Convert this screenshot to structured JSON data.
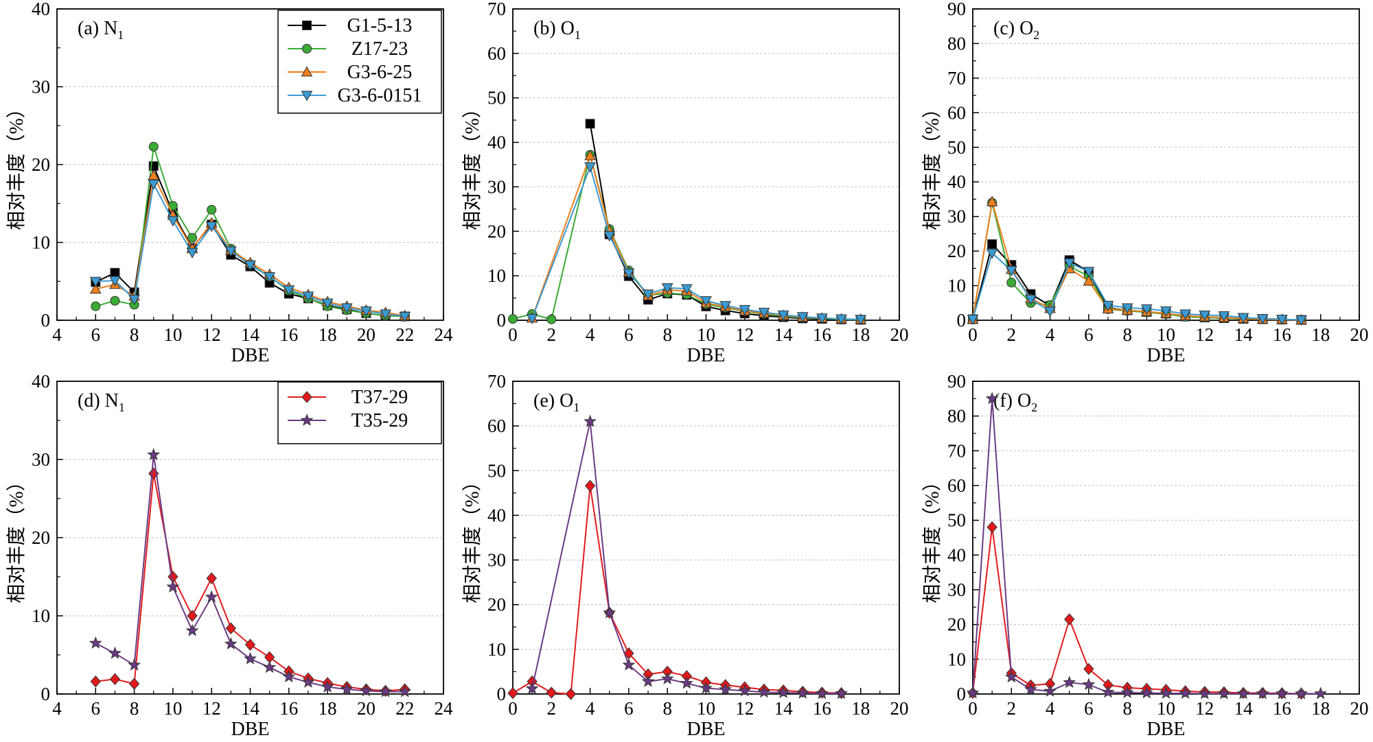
{
  "figure": {
    "y_axis_label": "相对丰度（%）",
    "x_axis_label": "DBE"
  },
  "chart_data": [
    {
      "panel": "a",
      "type": "line",
      "label": "(a) N",
      "label_sub": "1",
      "xlim": [
        4,
        24
      ],
      "xticks": [
        4,
        6,
        8,
        10,
        12,
        14,
        16,
        18,
        20,
        22,
        24
      ],
      "ylim": [
        0,
        40
      ],
      "yticks": [
        0,
        10,
        20,
        30,
        40
      ],
      "xlabel": "DBE",
      "ylabel": "相对丰度（%）",
      "legend": "top-right",
      "grid": "y-dashed",
      "series": [
        {
          "name": "G1-5-13",
          "color": "#000000",
          "marker": "square",
          "x": [
            6,
            7,
            8,
            9,
            10,
            11,
            12,
            13,
            14,
            15,
            16,
            17,
            18,
            19,
            20,
            21,
            22
          ],
          "y": [
            4.9,
            6.1,
            3.6,
            19.8,
            13.8,
            9.3,
            12.3,
            8.4,
            6.9,
            4.8,
            3.4,
            2.8,
            1.9,
            1.4,
            0.9,
            0.6,
            0.5
          ]
        },
        {
          "name": "Z17-23",
          "color": "#3aa935",
          "marker": "circle",
          "x": [
            6,
            7,
            8,
            9,
            10,
            11,
            12,
            13,
            14,
            15,
            16,
            17,
            18,
            19,
            20,
            21,
            22
          ],
          "y": [
            1.8,
            2.5,
            2.0,
            22.3,
            14.7,
            10.6,
            14.2,
            9.2,
            7.2,
            5.6,
            3.8,
            2.8,
            1.8,
            1.3,
            0.9,
            0.6,
            0.5
          ]
        },
        {
          "name": "G3-6-25",
          "color": "#f07f1d",
          "marker": "triangle-up",
          "x": [
            6,
            7,
            8,
            9,
            10,
            11,
            12,
            13,
            14,
            15,
            16,
            17,
            18,
            19,
            20,
            21,
            22
          ],
          "y": [
            4.0,
            4.6,
            3.1,
            18.6,
            13.5,
            9.2,
            12.5,
            9.0,
            7.4,
            5.9,
            4.2,
            3.3,
            2.4,
            1.8,
            1.3,
            1.0,
            0.6
          ]
        },
        {
          "name": "G3-6-0151",
          "color": "#3b9ad1",
          "marker": "triangle-down",
          "x": [
            6,
            7,
            8,
            9,
            10,
            11,
            12,
            13,
            14,
            15,
            16,
            17,
            18,
            19,
            20,
            21,
            22
          ],
          "y": [
            5.0,
            5.1,
            2.7,
            17.5,
            12.8,
            8.7,
            12.1,
            8.9,
            7.1,
            5.6,
            3.9,
            3.1,
            2.2,
            1.6,
            1.2,
            0.8,
            0.5
          ]
        }
      ]
    },
    {
      "panel": "b",
      "type": "line",
      "label": "(b) O",
      "label_sub": "1",
      "xlim": [
        0,
        20
      ],
      "xticks": [
        0,
        2,
        4,
        6,
        8,
        10,
        12,
        14,
        16,
        18,
        20
      ],
      "ylim": [
        0,
        70
      ],
      "yticks": [
        0,
        10,
        20,
        30,
        40,
        50,
        60,
        70
      ],
      "xlabel": "DBE",
      "ylabel": "相对丰度（%）",
      "grid": "y-dashed",
      "series": [
        {
          "name": "G1-5-13",
          "color": "#000000",
          "marker": "square",
          "x": [
            4,
            5,
            6,
            7,
            8,
            9,
            10,
            11,
            12,
            13,
            14,
            15,
            16,
            17,
            18
          ],
          "y": [
            44.2,
            19.3,
            9.9,
            4.6,
            6.0,
            5.7,
            3.1,
            2.2,
            1.5,
            1.0,
            0.7,
            0.4,
            0.3,
            0.2,
            0.1
          ]
        },
        {
          "name": "Z17-23",
          "color": "#3aa935",
          "marker": "circle",
          "x": [
            0,
            1,
            2,
            4,
            5,
            6,
            7,
            8,
            9,
            10,
            11,
            12,
            13,
            14,
            15,
            16,
            17,
            18
          ],
          "y": [
            0.3,
            1.4,
            0.2,
            37.2,
            20.5,
            11.2,
            5.6,
            6.1,
            5.8,
            3.6,
            2.8,
            2.0,
            1.4,
            0.9,
            0.6,
            0.4,
            0.2,
            0.1
          ]
        },
        {
          "name": "G3-6-25",
          "color": "#f07f1d",
          "marker": "triangle-up",
          "x": [
            1,
            4,
            5,
            6,
            7,
            8,
            9,
            10,
            11,
            12,
            13,
            14,
            15,
            16,
            17,
            18
          ],
          "y": [
            0.5,
            37.0,
            20.2,
            10.8,
            5.5,
            6.8,
            6.6,
            3.9,
            3.0,
            2.1,
            1.6,
            1.1,
            0.7,
            0.5,
            0.3,
            0.2
          ]
        },
        {
          "name": "G3-6-0151",
          "color": "#3b9ad1",
          "marker": "triangle-down",
          "x": [
            1,
            4,
            5,
            6,
            7,
            8,
            9,
            10,
            11,
            12,
            13,
            14,
            15,
            16,
            17,
            18
          ],
          "y": [
            0.4,
            34.5,
            19.0,
            10.6,
            5.9,
            7.3,
            7.1,
            4.4,
            3.3,
            2.4,
            1.8,
            1.2,
            0.8,
            0.5,
            0.3,
            0.2
          ]
        }
      ]
    },
    {
      "panel": "c",
      "type": "line",
      "label": "(c) O",
      "label_sub": "2",
      "xlim": [
        0,
        20
      ],
      "xticks": [
        0,
        2,
        4,
        6,
        8,
        10,
        12,
        14,
        16,
        18,
        20
      ],
      "ylim": [
        0,
        90
      ],
      "yticks": [
        0,
        10,
        20,
        30,
        40,
        50,
        60,
        70,
        80,
        90
      ],
      "xlabel": "DBE",
      "ylabel": "相对丰度（%）",
      "grid": "y-dashed",
      "series": [
        {
          "name": "G1-5-13",
          "color": "#000000",
          "marker": "square",
          "x": [
            0,
            1,
            2,
            3,
            4,
            5,
            6,
            7,
            8,
            9,
            10,
            11,
            12,
            13,
            14,
            15,
            16,
            17
          ],
          "y": [
            0.3,
            22.0,
            16.0,
            7.6,
            4.2,
            17.4,
            14.0,
            3.5,
            2.9,
            2.4,
            1.9,
            1.1,
            0.8,
            0.6,
            0.4,
            0.3,
            0.2,
            0.1
          ]
        },
        {
          "name": "Z17-23",
          "color": "#3aa935",
          "marker": "circle",
          "x": [
            0,
            1,
            2,
            3,
            4,
            5,
            6,
            7,
            8,
            9,
            10,
            11,
            12,
            13,
            14,
            15,
            16,
            17
          ],
          "y": [
            0.3,
            34.0,
            10.9,
            5.0,
            4.4,
            15.6,
            12.7,
            3.2,
            2.7,
            2.3,
            1.8,
            1.0,
            0.8,
            0.6,
            0.4,
            0.3,
            0.2,
            0.1
          ]
        },
        {
          "name": "G3-6-25",
          "color": "#f07f1d",
          "marker": "triangle-up",
          "x": [
            0,
            1,
            2,
            3,
            4,
            5,
            6,
            7,
            8,
            9,
            10,
            11,
            12,
            13,
            14,
            15,
            16,
            17
          ],
          "y": [
            0.3,
            34.3,
            14.7,
            6.3,
            3.4,
            14.9,
            11.3,
            3.3,
            2.9,
            2.5,
            2.0,
            1.3,
            1.0,
            0.8,
            0.5,
            0.3,
            0.2,
            0.1
          ]
        },
        {
          "name": "G3-6-0151",
          "color": "#3b9ad1",
          "marker": "triangle-down",
          "x": [
            0,
            1,
            2,
            3,
            4,
            5,
            6,
            7,
            8,
            9,
            10,
            11,
            12,
            13,
            14,
            15,
            16,
            17
          ],
          "y": [
            0.3,
            19.4,
            14.4,
            6.1,
            2.6,
            16.6,
            14.1,
            4.3,
            3.6,
            3.3,
            2.7,
            1.8,
            1.5,
            1.3,
            0.8,
            0.5,
            0.3,
            0.1
          ]
        }
      ]
    },
    {
      "panel": "d",
      "type": "line",
      "label": "(d) N",
      "label_sub": "1",
      "xlim": [
        4,
        24
      ],
      "xticks": [
        4,
        6,
        8,
        10,
        12,
        14,
        16,
        18,
        20,
        22,
        24
      ],
      "ylim": [
        0,
        40
      ],
      "yticks": [
        0,
        10,
        20,
        30,
        40
      ],
      "xlabel": "DBE",
      "ylabel": "相对丰度（%）",
      "legend": "top-right",
      "grid": "y-dashed",
      "series": [
        {
          "name": "T37-29",
          "color": "#e3191c",
          "marker": "diamond",
          "x": [
            6,
            7,
            8,
            9,
            10,
            11,
            12,
            13,
            14,
            15,
            16,
            17,
            18,
            19,
            20,
            21,
            22
          ],
          "y": [
            1.6,
            1.9,
            1.3,
            28.2,
            15.0,
            10.0,
            14.8,
            8.4,
            6.3,
            4.7,
            2.9,
            2.0,
            1.4,
            0.9,
            0.6,
            0.4,
            0.6
          ]
        },
        {
          "name": "T35-29",
          "color": "#6a3a84",
          "marker": "star",
          "x": [
            6,
            7,
            8,
            9,
            10,
            11,
            12,
            13,
            14,
            15,
            16,
            17,
            18,
            19,
            20,
            21,
            22
          ],
          "y": [
            6.5,
            5.2,
            3.7,
            30.6,
            13.7,
            8.1,
            12.4,
            6.4,
            4.5,
            3.4,
            2.2,
            1.5,
            0.9,
            0.6,
            0.4,
            0.3,
            0.3
          ]
        }
      ]
    },
    {
      "panel": "e",
      "type": "line",
      "label": "(e) O",
      "label_sub": "1",
      "xlim": [
        0,
        20
      ],
      "xticks": [
        0,
        2,
        4,
        6,
        8,
        10,
        12,
        14,
        16,
        18,
        20
      ],
      "ylim": [
        0,
        70
      ],
      "yticks": [
        0,
        10,
        20,
        30,
        40,
        50,
        60,
        70
      ],
      "xlabel": "DBE",
      "ylabel": "相对丰度（%）",
      "grid": "y-dashed",
      "series": [
        {
          "name": "T37-29",
          "color": "#e3191c",
          "marker": "diamond",
          "x": [
            0,
            1,
            2,
            3,
            4,
            5,
            6,
            7,
            8,
            9,
            10,
            11,
            12,
            13,
            14,
            15,
            16,
            17
          ],
          "y": [
            0.2,
            2.8,
            0.3,
            0.0,
            46.6,
            18.2,
            9.1,
            4.4,
            5.0,
            4.0,
            2.6,
            2.0,
            1.5,
            1.0,
            0.8,
            0.5,
            0.3,
            0.2
          ]
        },
        {
          "name": "T35-29",
          "color": "#6a3a84",
          "marker": "star",
          "x": [
            1,
            4,
            5,
            6,
            7,
            8,
            9,
            10,
            11,
            12,
            13,
            14,
            15,
            16,
            17
          ],
          "y": [
            1.2,
            61.0,
            18.2,
            6.5,
            2.8,
            3.4,
            2.4,
            1.3,
            1.0,
            0.7,
            0.4,
            0.3,
            0.2,
            0.1,
            0.1
          ]
        }
      ]
    },
    {
      "panel": "f",
      "type": "line",
      "label": "(f) O",
      "label_sub": "2",
      "xlim": [
        0,
        20
      ],
      "xticks": [
        0,
        2,
        4,
        6,
        8,
        10,
        12,
        14,
        16,
        18,
        20
      ],
      "ylim": [
        0,
        90
      ],
      "yticks": [
        0,
        10,
        20,
        30,
        40,
        50,
        60,
        70,
        80,
        90
      ],
      "xlabel": "DBE",
      "ylabel": "相对丰度（%）",
      "grid": "y-dashed",
      "series": [
        {
          "name": "T37-29",
          "color": "#e3191c",
          "marker": "diamond",
          "x": [
            0,
            1,
            2,
            3,
            4,
            5,
            6,
            7,
            8,
            9,
            10,
            11,
            12,
            13,
            14,
            15,
            16,
            17
          ],
          "y": [
            0.3,
            48.0,
            6.0,
            2.5,
            2.9,
            21.5,
            7.2,
            2.6,
            1.8,
            1.5,
            1.2,
            0.8,
            0.6,
            0.5,
            0.3,
            0.3,
            0.2,
            0.1
          ]
        },
        {
          "name": "T35-29",
          "color": "#6a3a84",
          "marker": "star",
          "x": [
            0,
            1,
            2,
            3,
            4,
            5,
            6,
            7,
            8,
            9,
            10,
            11,
            12,
            13,
            14,
            15,
            16,
            17,
            18
          ],
          "y": [
            0.3,
            85.0,
            4.9,
            1.3,
            0.8,
            3.3,
            2.7,
            0.5,
            0.4,
            0.3,
            0.2,
            0.2,
            0.1,
            0.1,
            0.1,
            0.1,
            0.1,
            0.1,
            0.1
          ]
        }
      ]
    }
  ]
}
